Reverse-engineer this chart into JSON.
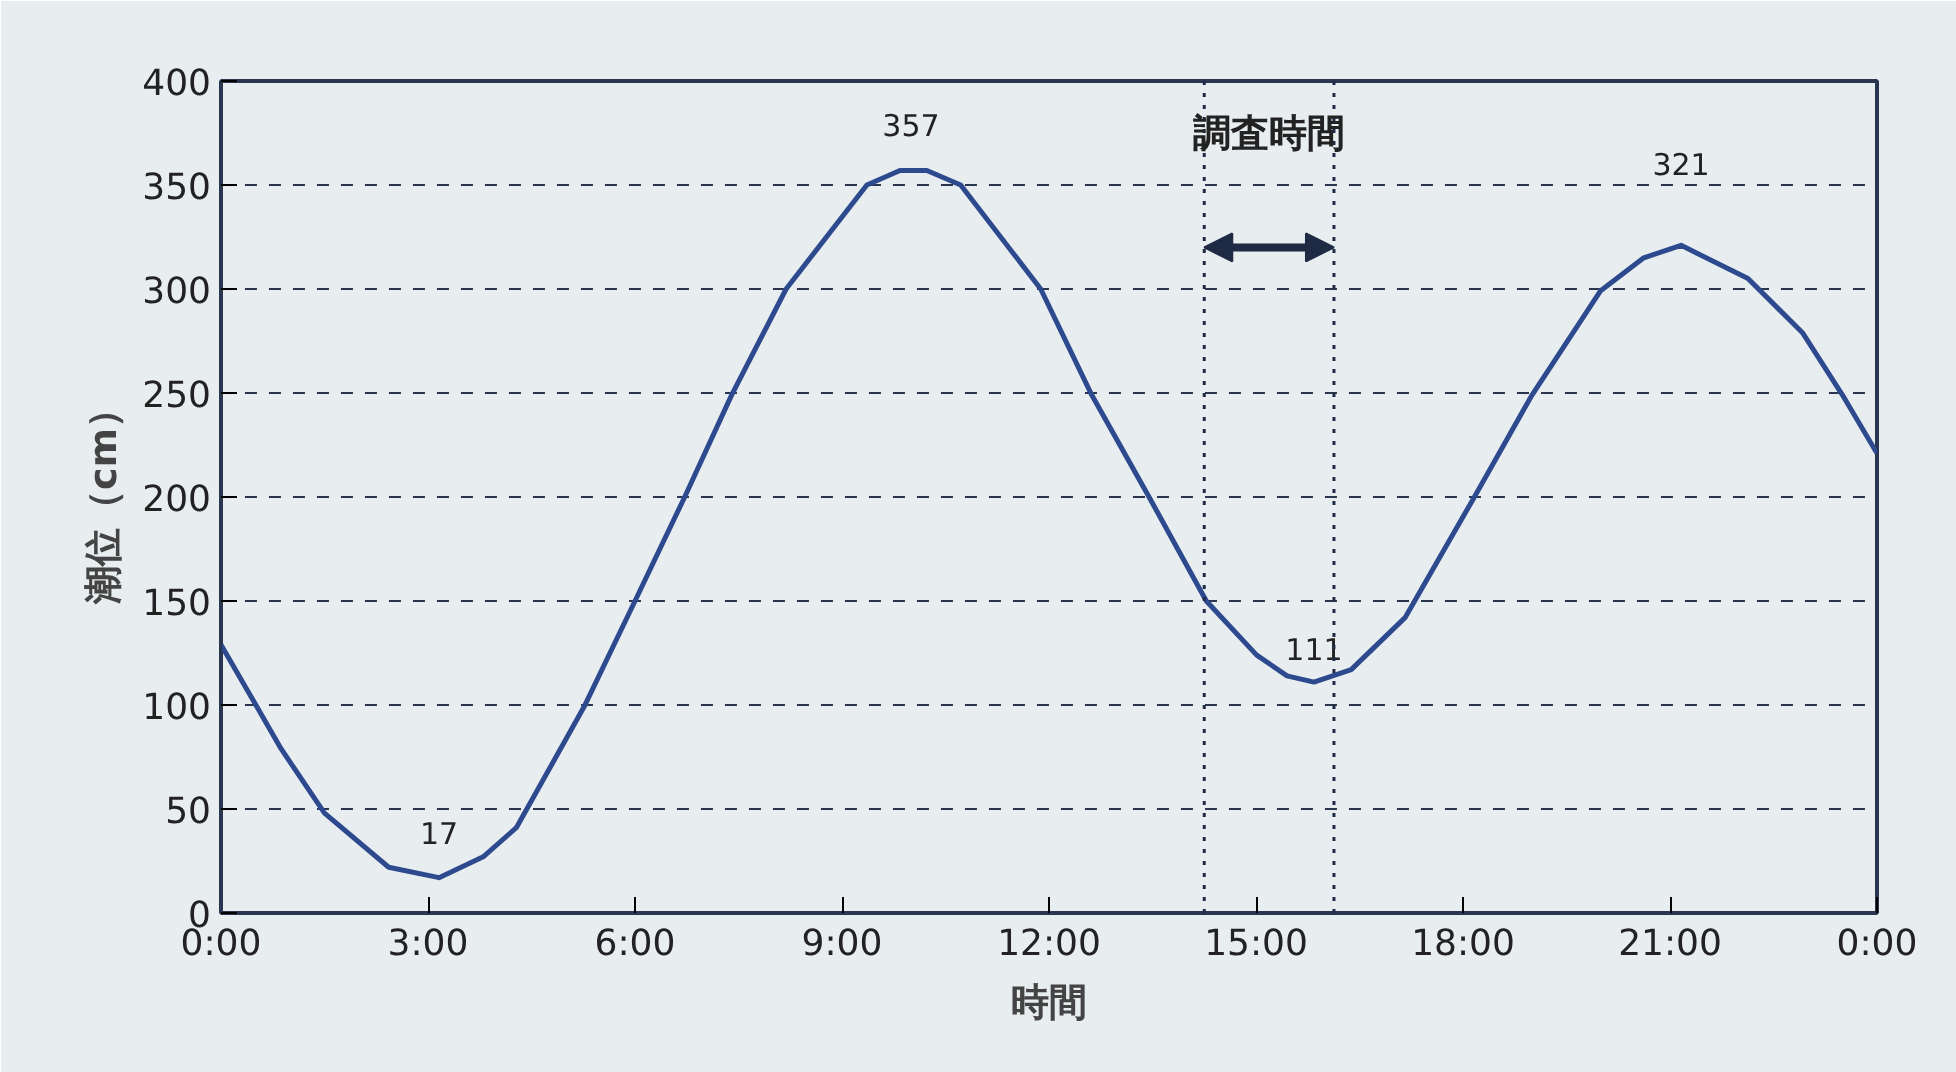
{
  "chart_data": {
    "type": "line",
    "xlabel": "時間",
    "ylabel": "潮位（cm）",
    "xlim": [
      0,
      24
    ],
    "ylim": [
      0,
      400
    ],
    "xticks": [
      {
        "value": 0,
        "label": "0:00"
      },
      {
        "value": 3,
        "label": "3:00"
      },
      {
        "value": 6,
        "label": "6:00"
      },
      {
        "value": 9,
        "label": "9:00"
      },
      {
        "value": 12,
        "label": "12:00"
      },
      {
        "value": 15,
        "label": "15:00"
      },
      {
        "value": 18,
        "label": "18:00"
      },
      {
        "value": 21,
        "label": "21:00"
      },
      {
        "value": 24,
        "label": "0:00"
      }
    ],
    "yticks": [
      0,
      50,
      100,
      150,
      200,
      250,
      300,
      350,
      400
    ],
    "grid": "y",
    "line_style": "solid",
    "series": [
      {
        "color": "#2e4a8f",
        "x": [
          0,
          0.87,
          1.5,
          2.43,
          3.16,
          3.8,
          4.28,
          5.26,
          6,
          6.72,
          7.4,
          8.19,
          9.36,
          9.84,
          10.23,
          10.72,
          11.88,
          12.62,
          13.45,
          14.28,
          15.01,
          15.45,
          15.84,
          16.38,
          17.16,
          18.13,
          19,
          19.99,
          20.62,
          21.16,
          22.13,
          22.92,
          23.5,
          24
        ],
        "values": [
          129,
          79,
          48,
          22,
          17,
          27,
          41,
          99,
          150,
          200,
          249,
          300,
          350,
          357,
          357,
          350,
          300,
          249,
          200,
          150,
          124,
          114,
          111,
          117,
          142,
          198,
          249,
          299,
          315,
          321,
          305,
          279,
          249,
          221
        ]
      }
    ],
    "annotations": [
      {
        "text": "17",
        "x": 3.16,
        "y": 17
      },
      {
        "text": "357",
        "x": 10.0,
        "y": 357
      },
      {
        "text": "111",
        "x": 15.84,
        "y": 111
      },
      {
        "text": "321",
        "x": 21.16,
        "y": 321
      },
      "調査時間"
    ],
    "ref_lines": [
      {
        "axis": "x",
        "value": 14.25,
        "color": "#1f2a44",
        "line_style": "dotted"
      },
      {
        "axis": "x",
        "value": 16.13,
        "color": "#1f2a44",
        "line_style": "dotted"
      }
    ]
  }
}
